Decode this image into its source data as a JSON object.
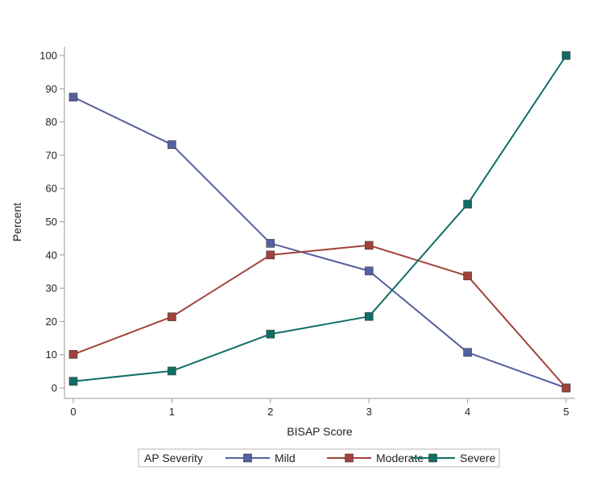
{
  "chart_data": {
    "type": "line",
    "title": "",
    "xlabel": "BISAP Score",
    "ylabel": "Percent",
    "x": [
      0,
      1,
      2,
      3,
      4,
      5
    ],
    "xlim": [
      0,
      5
    ],
    "ylim": [
      0,
      100
    ],
    "x_ticks": [
      "0",
      "1",
      "2",
      "3",
      "4",
      "5"
    ],
    "y_ticks": [
      "0",
      "10",
      "20",
      "30",
      "40",
      "50",
      "60",
      "70",
      "80",
      "90",
      "100"
    ],
    "grid": false,
    "legend": {
      "title": "AP Severity",
      "placement": "bottom-center"
    },
    "series": [
      {
        "name": "Mild",
        "color": "#5560a0",
        "values": [
          87.5,
          73.2,
          43.5,
          35.2,
          10.7,
          0
        ]
      },
      {
        "name": "Moderate",
        "color": "#a0423b",
        "values": [
          10.1,
          21.4,
          40.0,
          42.9,
          33.7,
          0
        ]
      },
      {
        "name": "Severe",
        "color": "#0f6e66",
        "values": [
          2.0,
          5.1,
          16.2,
          21.5,
          55.3,
          100
        ]
      }
    ]
  }
}
